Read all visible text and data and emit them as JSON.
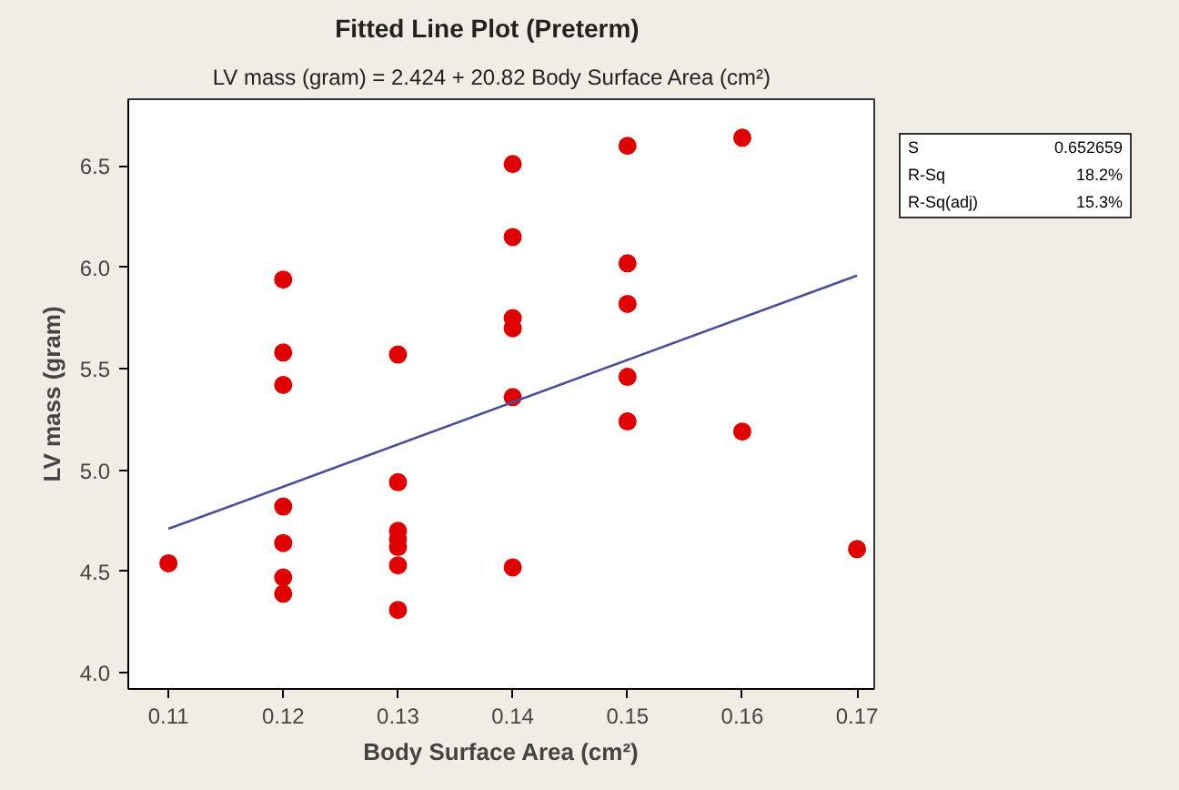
{
  "chart_data": {
    "type": "scatter",
    "title": "Fitted Line Plot     (Preterm)",
    "subtitle": "LV mass (gram)  =  2.424 + 20.82  Body Surface Area (cm²)",
    "xlabel": "Body Surface Area (cm²)",
    "ylabel": "LV mass (gram)",
    "xlim": [
      0.1065,
      0.1715
    ],
    "ylim": [
      3.92,
      6.83
    ],
    "xticks": [
      0.11,
      0.12,
      0.13,
      0.14,
      0.15,
      0.16,
      0.17
    ],
    "yticks": [
      {
        "value": 4.0,
        "label": "4.0"
      },
      {
        "value": 4.5,
        "label": "4.5"
      },
      {
        "value": 5.0,
        "label": "5.0"
      },
      {
        "value": 5.5,
        "label": "5.5"
      },
      {
        "value": 6.0,
        "label": "6.0"
      },
      {
        "value": 6.5,
        "label": "6.5"
      }
    ],
    "grid": false,
    "series": [
      {
        "marker": "circle",
        "color": "#e00000",
        "x": [
          0.11,
          0.12,
          0.12,
          0.12,
          0.12,
          0.12,
          0.12,
          0.12,
          0.13,
          0.13,
          0.13,
          0.13,
          0.13,
          0.13,
          0.13,
          0.14,
          0.14,
          0.14,
          0.14,
          0.14,
          0.14,
          0.15,
          0.15,
          0.15,
          0.15,
          0.15,
          0.16,
          0.16,
          0.17
        ],
        "values": [
          4.54,
          5.94,
          5.58,
          5.42,
          4.82,
          4.64,
          4.47,
          4.39,
          5.57,
          4.94,
          4.7,
          4.66,
          4.62,
          4.53,
          4.31,
          6.51,
          6.15,
          5.75,
          5.7,
          5.36,
          4.52,
          6.6,
          6.02,
          5.82,
          5.46,
          5.24,
          6.64,
          5.19,
          4.61
        ]
      },
      {
        "type": "line",
        "color": "#4b4f9a",
        "x": [
          0.11,
          0.17
        ],
        "values": [
          4.71,
          5.96
        ]
      }
    ],
    "annotations": [
      "S 0.652659",
      "R-Sq 18.2%",
      "R-Sq(adj) 15.3%"
    ]
  }
}
